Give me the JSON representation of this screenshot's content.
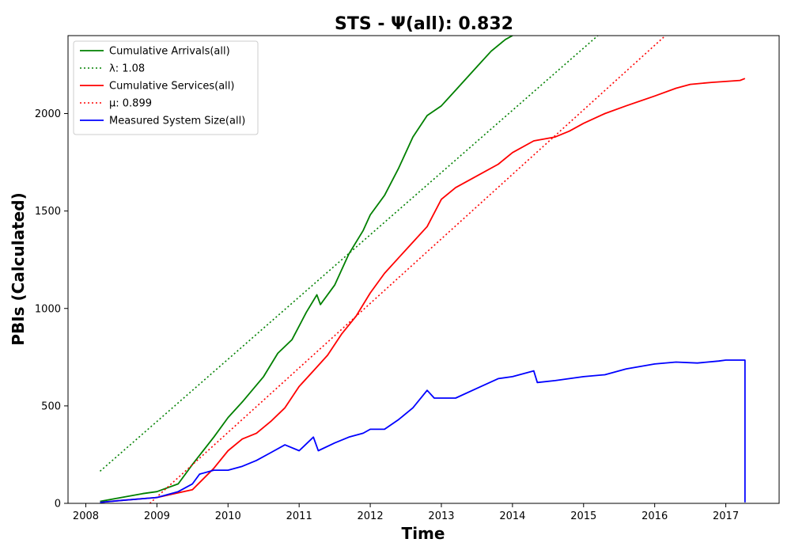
{
  "chart_data": {
    "type": "line",
    "title": "STS -  Ψ(all): 0.832",
    "xlabel": "Time",
    "ylabel": "PBIs (Calculated)",
    "xlim": [
      2007.75,
      2017.75
    ],
    "ylim": [
      0,
      2400
    ],
    "x_ticks": [
      "2008",
      "2009",
      "2010",
      "2011",
      "2012",
      "2013",
      "2014",
      "2015",
      "2016",
      "2017"
    ],
    "y_ticks": [
      "0",
      "500",
      "1000",
      "1500",
      "2000"
    ],
    "grid": false,
    "legend_position": "top-left",
    "series": [
      {
        "name": "Cumulative Arrivals(all)",
        "style": "solid",
        "color": "#008000",
        "points": [
          [
            2008.2,
            10
          ],
          [
            2008.5,
            30
          ],
          [
            2008.8,
            50
          ],
          [
            2009.0,
            60
          ],
          [
            2009.3,
            100
          ],
          [
            2009.5,
            200
          ],
          [
            2009.8,
            340
          ],
          [
            2010.0,
            440
          ],
          [
            2010.2,
            520
          ],
          [
            2010.5,
            650
          ],
          [
            2010.7,
            770
          ],
          [
            2010.9,
            840
          ],
          [
            2011.1,
            980
          ],
          [
            2011.25,
            1070
          ],
          [
            2011.3,
            1020
          ],
          [
            2011.5,
            1120
          ],
          [
            2011.7,
            1280
          ],
          [
            2011.9,
            1400
          ],
          [
            2012.0,
            1480
          ],
          [
            2012.2,
            1580
          ],
          [
            2012.4,
            1720
          ],
          [
            2012.6,
            1880
          ],
          [
            2012.8,
            1990
          ],
          [
            2013.0,
            2040
          ],
          [
            2013.2,
            2120
          ],
          [
            2013.5,
            2240
          ],
          [
            2013.7,
            2320
          ],
          [
            2013.9,
            2380
          ],
          [
            2014.0,
            2400
          ]
        ]
      },
      {
        "name": "λ: 1.08",
        "style": "dotted",
        "color": "#008000",
        "points": [
          [
            2008.2,
            165
          ],
          [
            2015.2,
            2400
          ]
        ]
      },
      {
        "name": "Cumulative Services(all)",
        "style": "solid",
        "color": "#ff0000",
        "points": [
          [
            2008.2,
            5
          ],
          [
            2008.5,
            15
          ],
          [
            2009.0,
            30
          ],
          [
            2009.5,
            70
          ],
          [
            2009.8,
            180
          ],
          [
            2010.0,
            270
          ],
          [
            2010.2,
            330
          ],
          [
            2010.4,
            360
          ],
          [
            2010.6,
            420
          ],
          [
            2010.8,
            490
          ],
          [
            2011.0,
            600
          ],
          [
            2011.2,
            680
          ],
          [
            2011.4,
            760
          ],
          [
            2011.6,
            870
          ],
          [
            2011.8,
            960
          ],
          [
            2012.0,
            1080
          ],
          [
            2012.2,
            1180
          ],
          [
            2012.4,
            1260
          ],
          [
            2012.6,
            1340
          ],
          [
            2012.8,
            1420
          ],
          [
            2013.0,
            1560
          ],
          [
            2013.2,
            1620
          ],
          [
            2013.5,
            1680
          ],
          [
            2013.8,
            1740
          ],
          [
            2014.0,
            1800
          ],
          [
            2014.3,
            1860
          ],
          [
            2014.6,
            1880
          ],
          [
            2014.8,
            1910
          ],
          [
            2015.0,
            1950
          ],
          [
            2015.3,
            2000
          ],
          [
            2015.6,
            2040
          ],
          [
            2016.0,
            2090
          ],
          [
            2016.3,
            2130
          ],
          [
            2016.5,
            2150
          ],
          [
            2016.8,
            2160
          ],
          [
            2017.0,
            2165
          ],
          [
            2017.2,
            2170
          ],
          [
            2017.27,
            2180
          ]
        ]
      },
      {
        "name": "μ: 0.899",
        "style": "dotted",
        "color": "#ff0000",
        "points": [
          [
            2008.9,
            0
          ],
          [
            2016.15,
            2400
          ]
        ]
      },
      {
        "name": "Measured System Size(all)",
        "style": "solid",
        "color": "#0000ff",
        "points": [
          [
            2008.2,
            5
          ],
          [
            2008.5,
            15
          ],
          [
            2009.0,
            30
          ],
          [
            2009.3,
            60
          ],
          [
            2009.5,
            100
          ],
          [
            2009.6,
            150
          ],
          [
            2009.8,
            170
          ],
          [
            2010.0,
            170
          ],
          [
            2010.2,
            190
          ],
          [
            2010.4,
            220
          ],
          [
            2010.6,
            260
          ],
          [
            2010.8,
            300
          ],
          [
            2011.0,
            270
          ],
          [
            2011.2,
            340
          ],
          [
            2011.27,
            270
          ],
          [
            2011.5,
            310
          ],
          [
            2011.7,
            340
          ],
          [
            2011.9,
            360
          ],
          [
            2012.0,
            380
          ],
          [
            2012.2,
            380
          ],
          [
            2012.4,
            430
          ],
          [
            2012.6,
            490
          ],
          [
            2012.8,
            580
          ],
          [
            2012.9,
            540
          ],
          [
            2013.2,
            540
          ],
          [
            2013.5,
            590
          ],
          [
            2013.8,
            640
          ],
          [
            2014.0,
            650
          ],
          [
            2014.3,
            680
          ],
          [
            2014.35,
            620
          ],
          [
            2014.6,
            630
          ],
          [
            2015.0,
            650
          ],
          [
            2015.3,
            660
          ],
          [
            2015.6,
            690
          ],
          [
            2016.0,
            715
          ],
          [
            2016.3,
            725
          ],
          [
            2016.6,
            720
          ],
          [
            2016.9,
            730
          ],
          [
            2017.0,
            735
          ],
          [
            2017.27,
            735
          ],
          [
            2017.27,
            5
          ]
        ]
      }
    ]
  }
}
